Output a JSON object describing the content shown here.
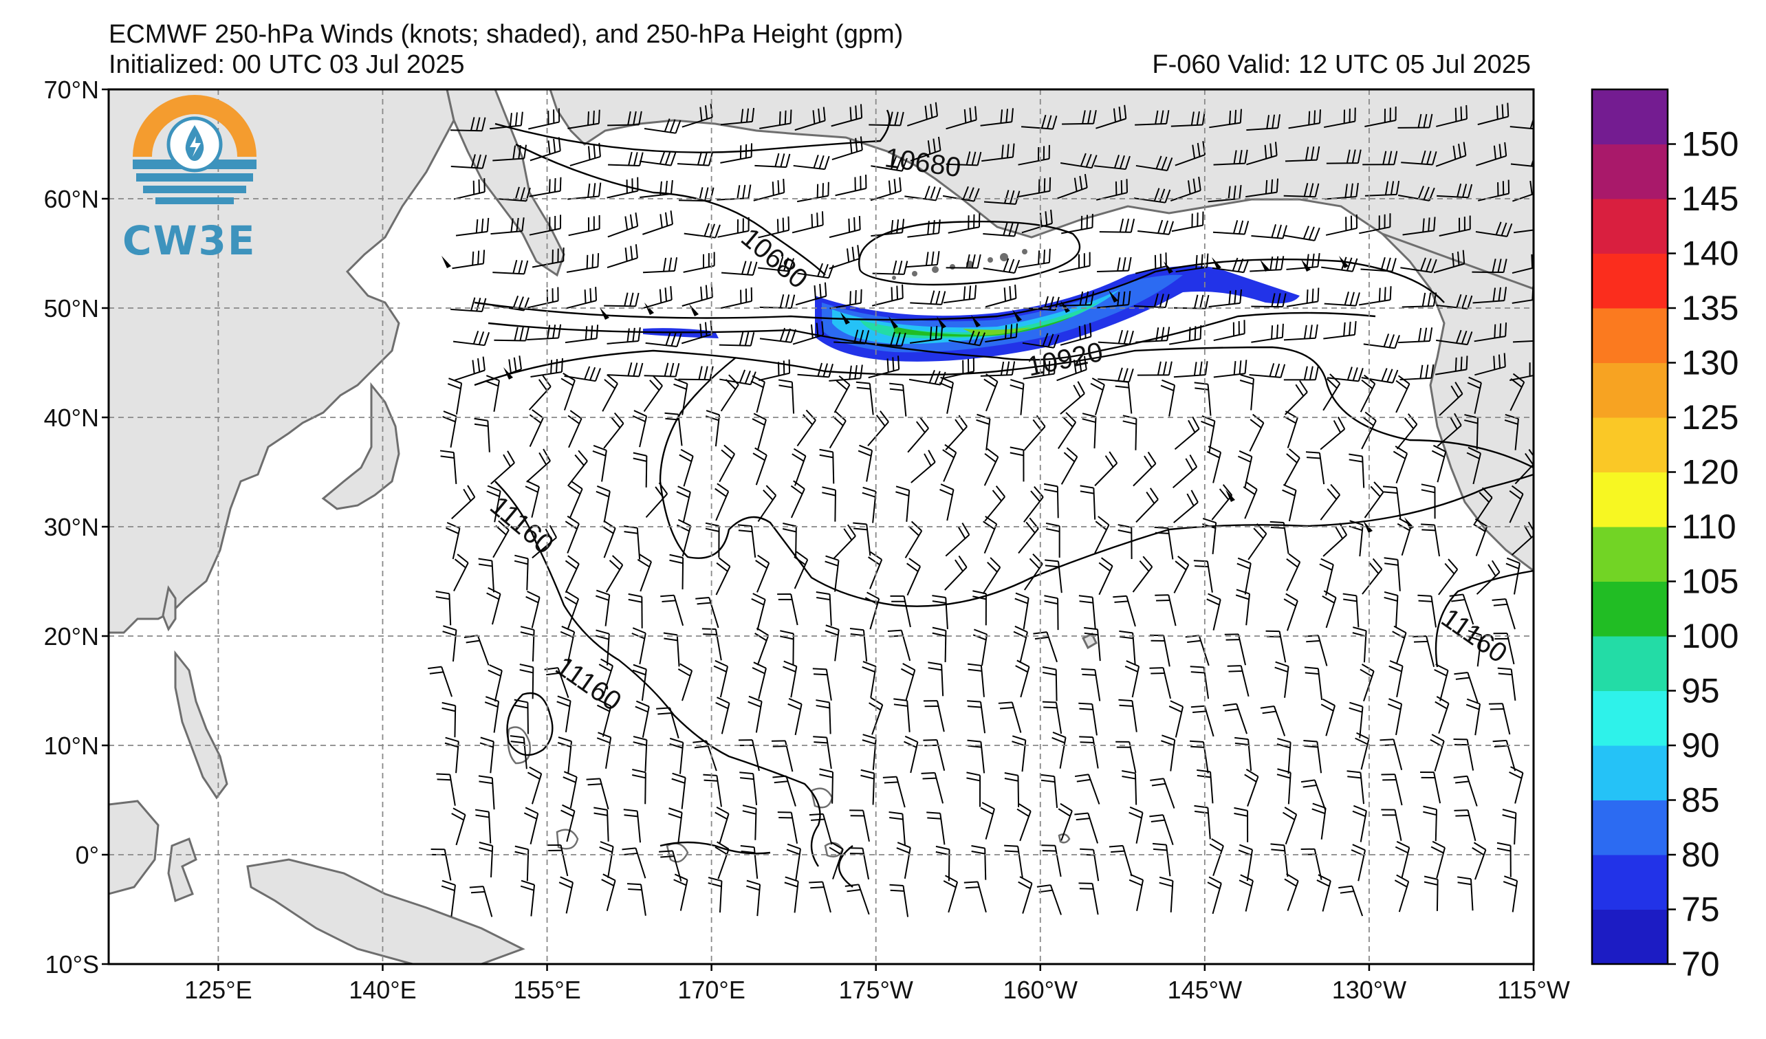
{
  "header": {
    "title": "ECMWF 250-hPa Winds (knots; shaded), and 250-hPa Height (gpm)",
    "initialized": "Initialized: 00 UTC 03 Jul 2025",
    "valid": "F-060  Valid: 12 UTC 05 Jul 2025"
  },
  "logo": {
    "text": "CW3E"
  },
  "map": {
    "lat_labels": [
      "70°N",
      "60°N",
      "50°N",
      "40°N",
      "30°N",
      "20°N",
      "10°N",
      "0°",
      "10°S"
    ],
    "lon_labels": [
      "125°E",
      "140°E",
      "155°E",
      "170°E",
      "175°W",
      "160°W",
      "145°W",
      "130°W",
      "115°W"
    ],
    "lat_range": [
      -10,
      70
    ],
    "lon_range_east": [
      115,
      245
    ],
    "contour_labels": [
      "10680",
      "10680",
      "10920",
      "11160",
      "11160",
      "11160"
    ],
    "land_color": "#e3e3e3",
    "coast_color": "#6e6e6e"
  },
  "colorbar": {
    "levels": [
      "70",
      "75",
      "80",
      "85",
      "90",
      "95",
      "100",
      "105",
      "110",
      "120",
      "125",
      "130",
      "135",
      "140",
      "145",
      "150"
    ],
    "colors": [
      "#1c1cc4",
      "#2233e8",
      "#2c6bf2",
      "#25c2f7",
      "#2ef2ea",
      "#23dca6",
      "#21bd24",
      "#72d425",
      "#f7f722",
      "#fac826",
      "#f7a322",
      "#fb7a1f",
      "#fb2d1d",
      "#d91f3f",
      "#a9196a",
      "#741c91"
    ]
  }
}
